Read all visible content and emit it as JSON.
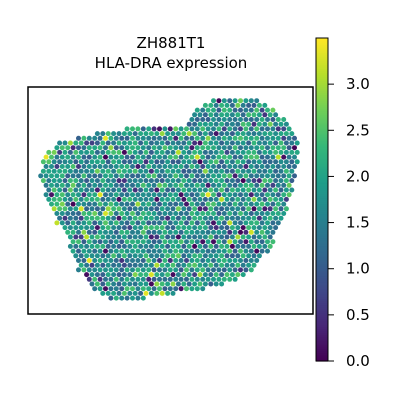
{
  "chart_data": {
    "type": "heatmap",
    "title": "ZH881T1",
    "subtitle": "HLA-DRA expression",
    "xlabel": "",
    "ylabel": "",
    "colorbar": {
      "colormap": "viridis",
      "range": [
        0.0,
        3.5
      ],
      "ticks": [
        0.0,
        0.5,
        1.0,
        1.5,
        2.0,
        2.5,
        3.0
      ],
      "tick_labels": [
        "0.0",
        "0.5",
        "1.0",
        "1.5",
        "2.0",
        "2.5",
        "3.0"
      ]
    },
    "typical_range": [
      1.0,
      2.5
    ],
    "grid": false,
    "legend": "colorbar right"
  }
}
